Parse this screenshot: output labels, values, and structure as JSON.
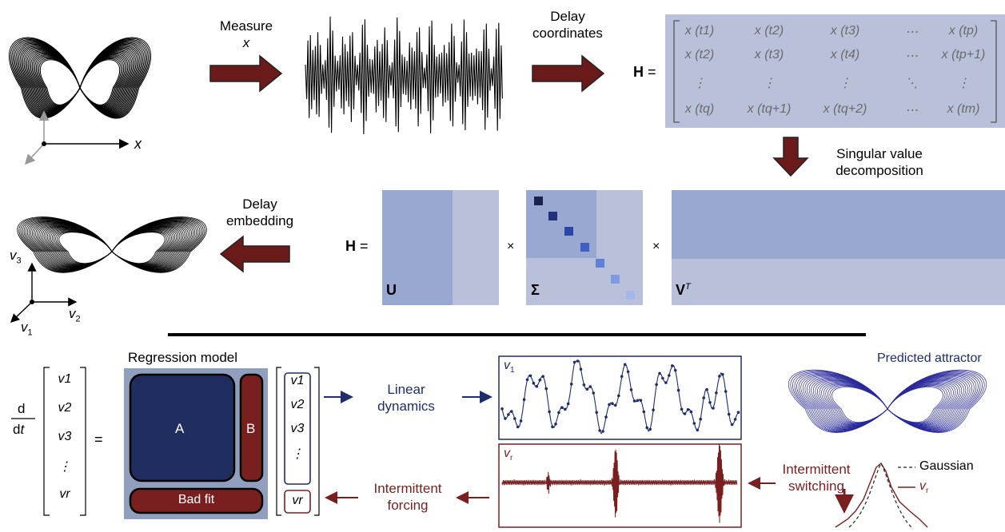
{
  "top": {
    "step1_label": "Measure",
    "step1_var": "x",
    "step2_label_line1": "Delay",
    "step2_label_line2": "coordinates",
    "hankel_lhs": "H =",
    "svd_label_line1": "Singular value",
    "svd_label_line2": "decomposition",
    "embed_label_line1": "Delay",
    "embed_label_line2": "embedding",
    "axis_x": "x",
    "axis_v1": "v",
    "axis_v1_sub": "1",
    "axis_v2": "v",
    "axis_v2_sub": "2",
    "axis_v3": "v",
    "axis_v3_sub": "3"
  },
  "hankel": {
    "rows": [
      [
        "x (t1)",
        "x (t2)",
        "x (t3)",
        "⋯",
        "x (tp)"
      ],
      [
        "x (t2)",
        "x (t3)",
        "x (t4)",
        "⋯",
        "x (tp+1)"
      ],
      [
        "⋮",
        "⋮",
        "⋮",
        "⋱",
        "⋮"
      ],
      [
        "x (tq)",
        "x (tq+1)",
        "x (tq+2)",
        "⋯",
        "x (tm)"
      ]
    ]
  },
  "svd": {
    "lhs": "H =",
    "times1": "×",
    "times2": "×",
    "U": "U",
    "Sigma": "Σ",
    "V": "V",
    "V_sup": "T"
  },
  "bottom": {
    "regression_title": "Regression model",
    "deriv_d": "d",
    "deriv_dt": "dt",
    "equals": "=",
    "A": "A",
    "B": "B",
    "bad_fit": "Bad fit",
    "vec_left": [
      "v1",
      "v2",
      "v3",
      "⋮",
      "vr"
    ],
    "vec_right": [
      "v1",
      "v2",
      "v3",
      "⋮",
      "vr"
    ],
    "linear_line1": "Linear",
    "linear_line2": "dynamics",
    "forcing_line1": "Intermittent",
    "forcing_line2": "forcing",
    "switching_line1": "Intermittent",
    "switching_line2": "switching",
    "predicted": "Predicted attractor",
    "panel_v1": "v",
    "panel_v1_sub": "1",
    "panel_vr": "v",
    "panel_vr_sub": "r",
    "legend_gaussian": "Gaussian",
    "legend_vr": "v",
    "legend_vr_sub": "r"
  },
  "colors": {
    "arrow": "#6b1a1a",
    "navy": "#1f2d6b",
    "matrix_bg": "#b9c1da",
    "blue_dark": "#97a9d1",
    "maroon": "#7a1f1f"
  }
}
